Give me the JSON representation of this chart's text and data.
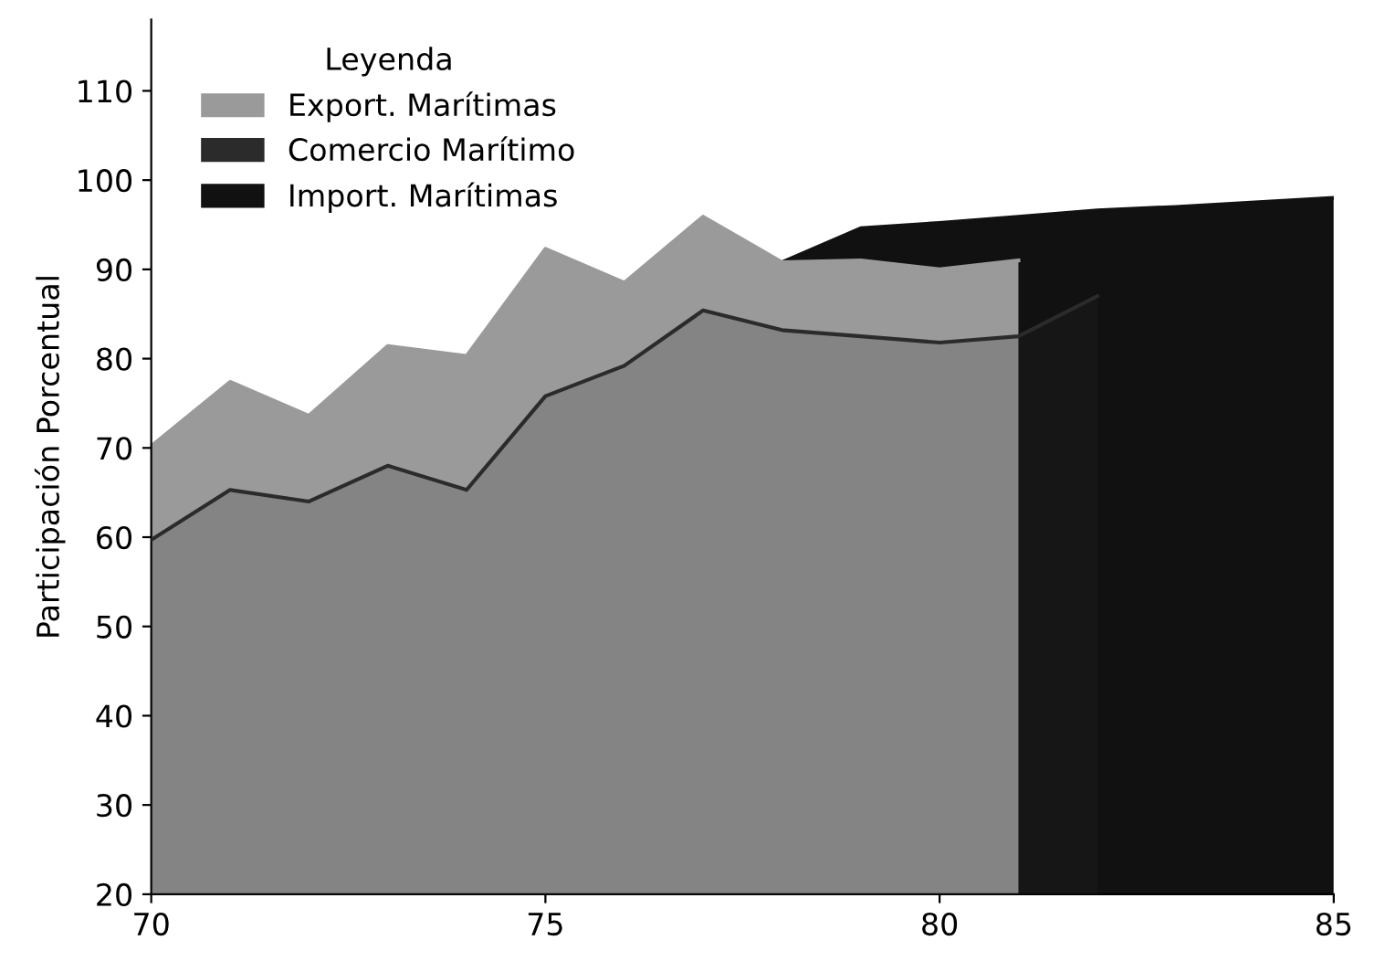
{
  "chart_data": {
    "type": "area",
    "ylabel": "Participación Porcentual",
    "legend_title": "Leyenda",
    "legend": "top left",
    "x": [
      70,
      71,
      72,
      73,
      74,
      75,
      76,
      77,
      78,
      79,
      80,
      81,
      82,
      83,
      84,
      85
    ],
    "xlim": [
      70,
      85
    ],
    "xticks": [
      70,
      75,
      80,
      85
    ],
    "ylim": [
      20,
      118
    ],
    "yticks": [
      20,
      30,
      40,
      50,
      60,
      70,
      80,
      90,
      100,
      110
    ],
    "grid": false,
    "series": [
      {
        "name": "Export. Marítimas",
        "color": "#9a9a9a",
        "values": [
          70.2,
          77.4,
          73.6,
          81.4,
          80.3,
          92.3,
          88.5,
          95.9,
          90.8,
          91,
          90,
          91,
          null,
          null,
          null,
          null
        ]
      },
      {
        "name": "Comercio Marítimo",
        "color": "#2b2b2b",
        "values": [
          59.7,
          65.3,
          64,
          68,
          65.3,
          75.8,
          79.2,
          85.4,
          83.2,
          82.5,
          81.8,
          82.5,
          87,
          null,
          null,
          null
        ]
      },
      {
        "name": "Import. Marítimas",
        "color": "#111111",
        "values": [
          null,
          null,
          null,
          null,
          null,
          null,
          null,
          null,
          90.8,
          94.6,
          95.2,
          95.9,
          96.6,
          97,
          97.5,
          98
        ]
      }
    ]
  }
}
